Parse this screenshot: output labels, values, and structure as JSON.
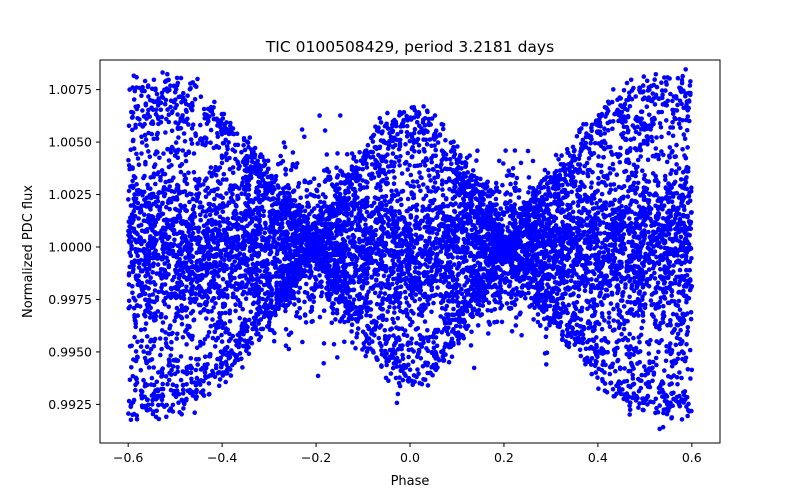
{
  "chart_data": {
    "type": "scatter",
    "title": "TIC 0100508429, period 3.2181 days",
    "xlabel": "Phase",
    "ylabel": "Normalized PDC flux",
    "xlim": [
      -0.66,
      0.66
    ],
    "ylim": [
      0.99066,
      1.00891
    ],
    "xticks": [
      -0.6,
      -0.4,
      -0.2,
      0.0,
      0.2,
      0.4,
      0.6
    ],
    "xtick_labels": [
      "−0.6",
      "−0.4",
      "−0.2",
      "0.0",
      "0.2",
      "0.4",
      "0.6"
    ],
    "yticks": [
      0.9925,
      0.995,
      0.9975,
      1.0,
      1.0025,
      1.005,
      1.0075
    ],
    "ytick_labels": [
      "0.9925",
      "0.9950",
      "0.9975",
      "1.0000",
      "1.0025",
      "1.0050",
      "1.0075"
    ],
    "grid": false,
    "marker_color": "#0000ff",
    "series": [
      {
        "name": "flux",
        "description_note": "Phase-folded light curve; dense band centered near 1.0000 with a secondary oscillating envelope (amplitude ~0.0075 at phase ±0.55, dip to ~0.9915 near phase 0.0).",
        "x_range": [
          -0.6,
          0.6
        ],
        "core_center": 1.0,
        "core_spread": 0.0018,
        "envelope_amplitude_edges": 0.0078,
        "envelope_amplitude_center": 0.0063,
        "envelope_node_phases": [
          -0.2,
          0.2
        ]
      }
    ]
  }
}
